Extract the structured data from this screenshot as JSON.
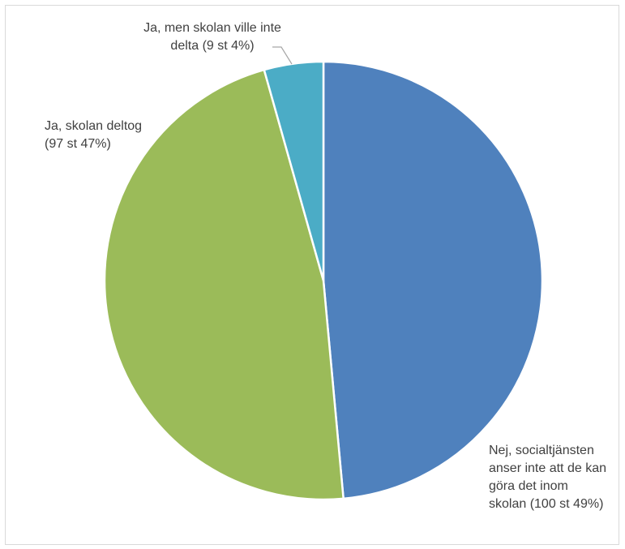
{
  "chart_data": {
    "type": "pie",
    "title": "",
    "slices": [
      {
        "label_lines": [
          "Nej, socialtjänsten",
          "anser inte att de kan",
          "göra det inom",
          "skolan (100 st 49%)"
        ],
        "count": 100,
        "percent": 49,
        "color": "#4f81bd"
      },
      {
        "label_lines": [
          "Ja, skolan deltog",
          "(97 st 47%)"
        ],
        "count": 97,
        "percent": 47,
        "color": "#9bbb59"
      },
      {
        "label_lines": [
          "Ja, men skolan ville inte",
          "delta (9 st 4%)"
        ],
        "count": 9,
        "percent": 4,
        "color": "#4bacc6"
      }
    ],
    "start_angle_deg": 0,
    "direction": "clockwise",
    "legend": "none",
    "slice_border_color": "#ffffff",
    "leader_line_color": "#a6a6a6"
  }
}
